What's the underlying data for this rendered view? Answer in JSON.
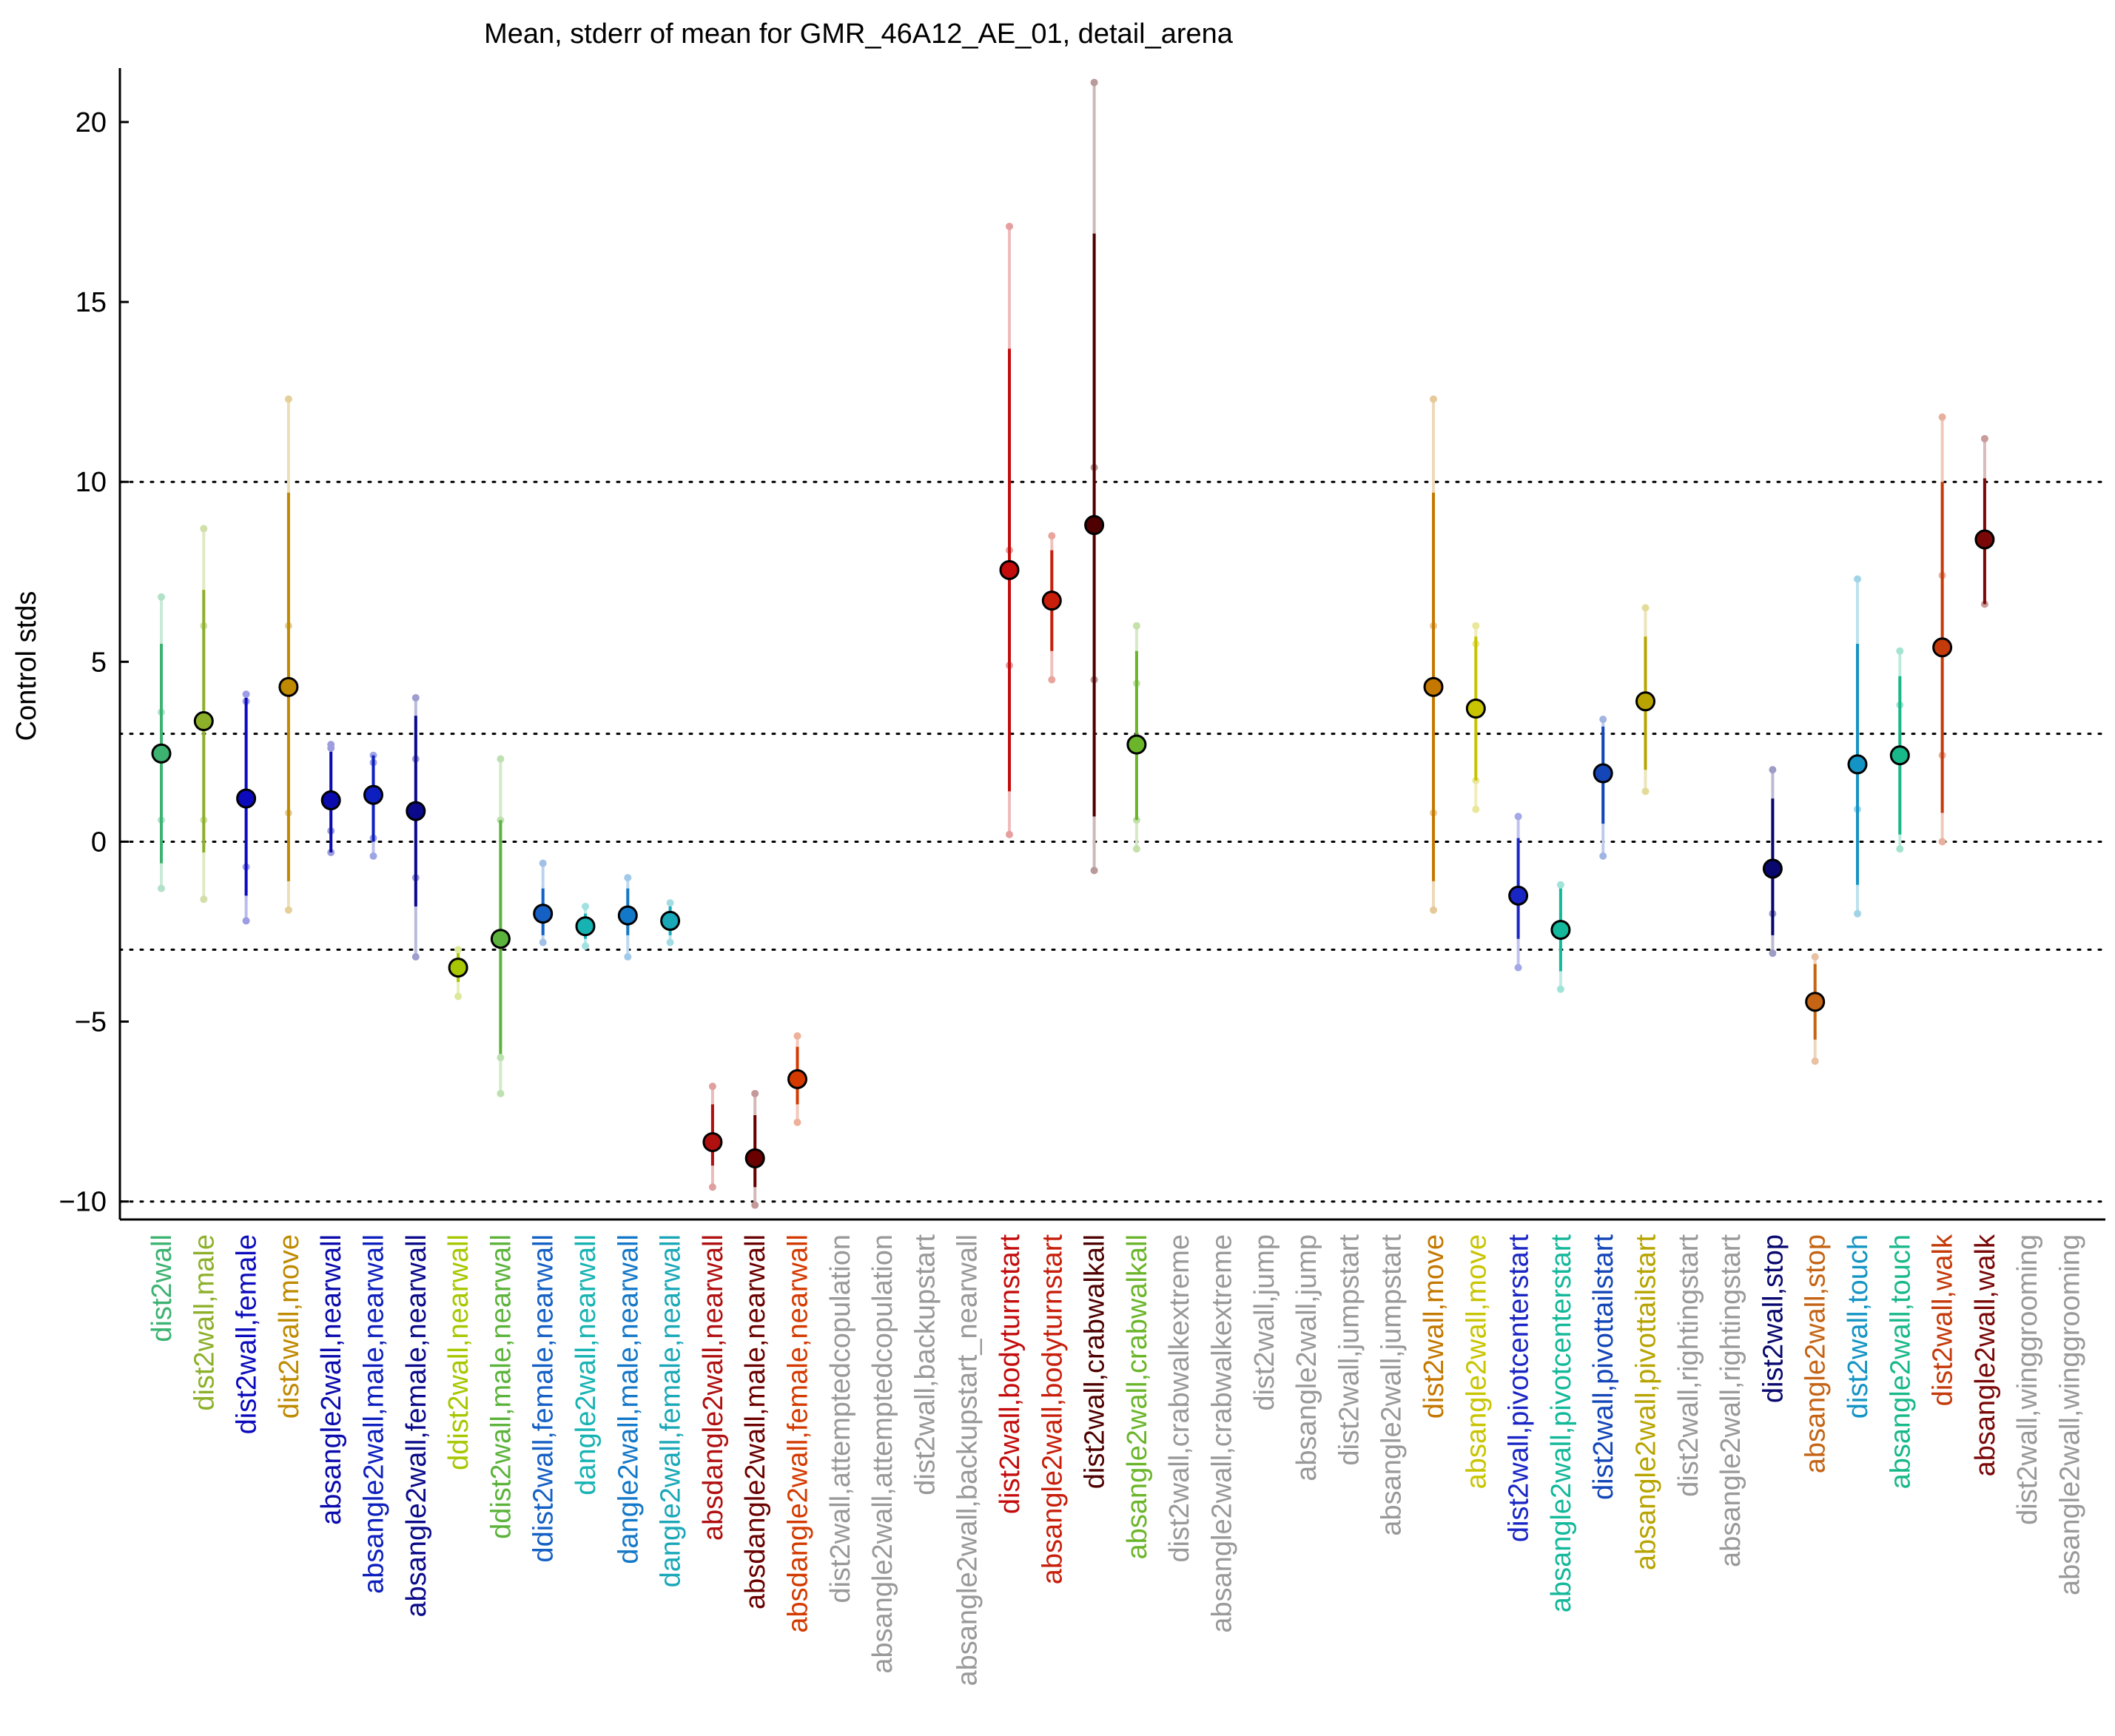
{
  "chart_data": {
    "type": "scatter",
    "title": "Mean, stderr of mean for GMR_46A12_AE_01, detail_arena",
    "xlabel": "",
    "ylabel": "Control stds",
    "ylim": [
      -10.5,
      21.5
    ],
    "yticks": [
      -10,
      -5,
      0,
      5,
      10,
      15,
      20
    ],
    "ytick_labels": [
      "−10",
      "−5",
      "0",
      "5",
      "10",
      "15",
      "20"
    ],
    "reference_lines": [
      -10,
      -3,
      0,
      3,
      10
    ],
    "grid": false,
    "legend": "none",
    "categories": [
      {
        "label": "dist2wall",
        "color": "#3cb371",
        "mean": 2.45,
        "err_lo": -0.6,
        "err_hi": 5.5,
        "pts": [
          6.8,
          3.6,
          0.6,
          -1.3
        ]
      },
      {
        "label": "dist2wall,male",
        "color": "#8db02a",
        "mean": 3.35,
        "err_lo": -0.3,
        "err_hi": 7.0,
        "pts": [
          8.7,
          6.0,
          0.6,
          -1.6
        ]
      },
      {
        "label": "dist2wall,female",
        "color": "#0b0bbd",
        "mean": 1.2,
        "err_lo": -1.5,
        "err_hi": 4.0,
        "pts": [
          4.1,
          3.9,
          -0.7,
          -2.2
        ]
      },
      {
        "label": "dist2wall,move",
        "color": "#bf8a00",
        "mean": 4.3,
        "err_lo": -1.1,
        "err_hi": 9.7,
        "pts": [
          12.3,
          6.0,
          0.8,
          -1.9
        ]
      },
      {
        "label": "absangle2wall,nearwall",
        "color": "#0b0bad",
        "mean": 1.15,
        "err_lo": -0.3,
        "err_hi": 2.5,
        "pts": [
          2.7,
          2.6,
          0.3,
          -0.3
        ]
      },
      {
        "label": "absangle2wall,male,nearwall",
        "color": "#0d1fbe",
        "mean": 1.3,
        "err_lo": 0.0,
        "err_hi": 2.4,
        "pts": [
          2.4,
          2.2,
          0.1,
          -0.4
        ]
      },
      {
        "label": "absangle2wall,female,nearwall",
        "color": "#0a0a8a",
        "mean": 0.85,
        "err_lo": -1.8,
        "err_hi": 3.5,
        "pts": [
          4.0,
          2.3,
          -1.0,
          -3.2
        ]
      },
      {
        "label": "ddist2wall,nearwall",
        "color": "#a8c700",
        "mean": -3.5,
        "err_lo": -3.9,
        "err_hi": -3.1,
        "pts": [
          -3.0,
          -4.3
        ]
      },
      {
        "label": "ddist2wall,male,nearwall",
        "color": "#5cb33c",
        "mean": -2.7,
        "err_lo": -5.9,
        "err_hi": 0.6,
        "pts": [
          2.3,
          0.6,
          -6.0,
          -7.0
        ]
      },
      {
        "label": "ddist2wall,female,nearwall",
        "color": "#1560c4",
        "mean": -2.0,
        "err_lo": -2.6,
        "err_hi": -1.3,
        "pts": [
          -0.6,
          -2.8
        ]
      },
      {
        "label": "dangle2wall,nearwall",
        "color": "#17b3b3",
        "mean": -2.35,
        "err_lo": -2.7,
        "err_hi": -2.0,
        "pts": [
          -1.8,
          -2.9
        ]
      },
      {
        "label": "dangle2wall,male,nearwall",
        "color": "#1478c8",
        "mean": -2.05,
        "err_lo": -2.6,
        "err_hi": -1.3,
        "pts": [
          -1.0,
          -3.2
        ]
      },
      {
        "label": "dangle2wall,female,nearwall",
        "color": "#1aa8b8",
        "mean": -2.2,
        "err_lo": -2.6,
        "err_hi": -1.8,
        "pts": [
          -1.7,
          -2.8
        ]
      },
      {
        "label": "absdangle2wall,nearwall",
        "color": "#b01010",
        "mean": -8.35,
        "err_lo": -9.0,
        "err_hi": -7.3,
        "pts": [
          -6.8,
          -9.6
        ]
      },
      {
        "label": "absdangle2wall,male,nearwall",
        "color": "#6b0000",
        "mean": -8.8,
        "err_lo": -9.6,
        "err_hi": -7.6,
        "pts": [
          -7.0,
          -10.1
        ]
      },
      {
        "label": "absdangle2wall,female,nearwall",
        "color": "#d43a00",
        "mean": -6.6,
        "err_lo": -7.3,
        "err_hi": -5.7,
        "pts": [
          -5.4,
          -7.8
        ]
      },
      {
        "label": "dist2wall,attemptedcopulation",
        "color": "#999999"
      },
      {
        "label": "absangle2wall,attemptedcopulation",
        "color": "#999999"
      },
      {
        "label": "dist2wall,backupstart",
        "color": "#999999"
      },
      {
        "label": "absangle2wall,backupstart_nearwall",
        "color": "#999999"
      },
      {
        "label": "dist2wall,bodyturnstart",
        "color": "#c40c0c",
        "mean": 7.55,
        "err_lo": 1.4,
        "err_hi": 13.7,
        "pts": [
          17.1,
          8.1,
          4.9,
          0.2
        ]
      },
      {
        "label": "absangle2wall,bodyturnstart",
        "color": "#c81e0a",
        "mean": 6.7,
        "err_lo": 5.3,
        "err_hi": 8.1,
        "pts": [
          8.5,
          4.5
        ]
      },
      {
        "label": "dist2wall,crabwalkall",
        "color": "#4f0000",
        "mean": 8.8,
        "err_lo": 0.7,
        "err_hi": 16.9,
        "pts": [
          21.1,
          10.4,
          4.5,
          -0.8
        ]
      },
      {
        "label": "absangle2wall,crabwalkall",
        "color": "#6bb52a",
        "mean": 2.7,
        "err_lo": 0.6,
        "err_hi": 5.3,
        "pts": [
          6.0,
          4.4,
          0.6,
          -0.2
        ]
      },
      {
        "label": "dist2wall,crabwalkextreme",
        "color": "#999999"
      },
      {
        "label": "absangle2wall,crabwalkextreme",
        "color": "#999999"
      },
      {
        "label": "dist2wall,jump",
        "color": "#999999"
      },
      {
        "label": "absangle2wall,jump",
        "color": "#999999"
      },
      {
        "label": "dist2wall,jumpstart",
        "color": "#999999"
      },
      {
        "label": "absangle2wall,jumpstart",
        "color": "#999999"
      },
      {
        "label": "dist2wall,move",
        "color": "#c47800",
        "mean": 4.3,
        "err_lo": -1.1,
        "err_hi": 9.7,
        "pts": [
          12.3,
          6.0,
          0.8,
          -1.9
        ]
      },
      {
        "label": "absangle2wall,move",
        "color": "#c8c400",
        "mean": 3.7,
        "err_lo": 1.7,
        "err_hi": 5.7,
        "pts": [
          6.0,
          5.5,
          1.7,
          0.9
        ]
      },
      {
        "label": "dist2wall,pivotcenterstart",
        "color": "#1a26c4",
        "mean": -1.5,
        "err_lo": -2.7,
        "err_hi": 0.1,
        "pts": [
          0.7,
          -3.5
        ]
      },
      {
        "label": "absangle2wall,pivotcenterstart",
        "color": "#14b89a",
        "mean": -2.45,
        "err_lo": -3.6,
        "err_hi": -1.3,
        "pts": [
          -1.2,
          -4.1
        ]
      },
      {
        "label": "dist2wall,pivottailstart",
        "color": "#1446b8",
        "mean": 1.9,
        "err_lo": 0.5,
        "err_hi": 3.2,
        "pts": [
          3.4,
          -0.4
        ]
      },
      {
        "label": "absangle2wall,pivottailstart",
        "color": "#b8a400",
        "mean": 3.9,
        "err_lo": 2.0,
        "err_hi": 5.7,
        "pts": [
          6.5,
          1.4
        ]
      },
      {
        "label": "dist2wall,rightingstart",
        "color": "#999999"
      },
      {
        "label": "absangle2wall,rightingstart",
        "color": "#999999"
      },
      {
        "label": "dist2wall,stop",
        "color": "#08086e",
        "mean": -0.75,
        "err_lo": -2.6,
        "err_hi": 1.2,
        "pts": [
          2.0,
          -2.0,
          -3.1
        ]
      },
      {
        "label": "absangle2wall,stop",
        "color": "#c46414",
        "mean": -4.45,
        "err_lo": -5.5,
        "err_hi": -3.4,
        "pts": [
          -3.2,
          -6.1
        ]
      },
      {
        "label": "dist2wall,touch",
        "color": "#1494c4",
        "mean": 2.15,
        "err_lo": -1.2,
        "err_hi": 5.5,
        "pts": [
          7.3,
          0.9,
          -2.0
        ]
      },
      {
        "label": "absangle2wall,touch",
        "color": "#18b88a",
        "mean": 2.4,
        "err_lo": 0.2,
        "err_hi": 4.6,
        "pts": [
          5.3,
          3.8,
          -0.2
        ]
      },
      {
        "label": "dist2wall,walk",
        "color": "#c43a0a",
        "mean": 5.4,
        "err_lo": 0.8,
        "err_hi": 10.0,
        "pts": [
          11.8,
          7.4,
          2.4,
          0.0
        ]
      },
      {
        "label": "absangle2wall,walk",
        "color": "#7a0808",
        "mean": 8.4,
        "err_lo": 6.6,
        "err_hi": 10.1,
        "pts": [
          11.2,
          6.6
        ]
      },
      {
        "label": "dist2wall,winggrooming",
        "color": "#999999"
      },
      {
        "label": "absangle2wall,winggrooming",
        "color": "#999999"
      }
    ]
  }
}
